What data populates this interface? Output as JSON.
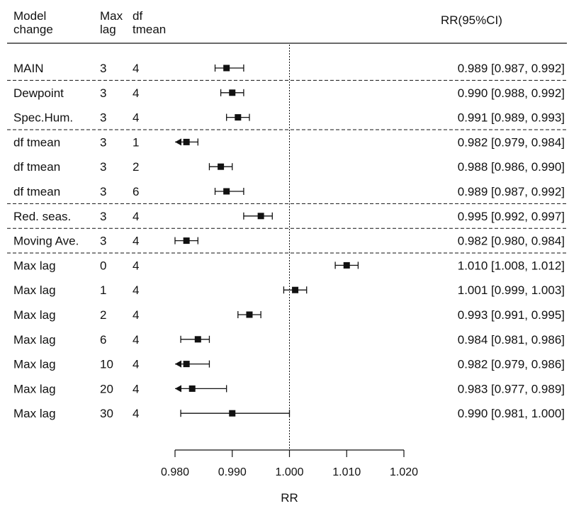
{
  "chart_data": {
    "type": "forest",
    "columns": {
      "model_line1": "Model",
      "model_line2": "change",
      "lag_line1": "Max",
      "lag_line2": "lag",
      "df_line1": "df",
      "df_line2": "tmean",
      "ci": "RR(95%CI)"
    },
    "xlabel": "RR",
    "xlim": [
      0.98,
      1.02
    ],
    "xticks": [
      "0.980",
      "0.990",
      "1.000",
      "1.010",
      "1.020"
    ],
    "xtick_values": [
      0.98,
      0.99,
      1.0,
      1.01,
      1.02
    ],
    "reference_line": 1.0,
    "rows": [
      {
        "model": "MAIN",
        "lag": "3",
        "df": "4",
        "rr": 0.989,
        "lo": 0.987,
        "hi": 0.992,
        "label": "0.989 [0.987, 0.992]",
        "bold": true
      },
      {
        "model": "Dewpoint",
        "lag": "3",
        "df": "4",
        "rr": 0.99,
        "lo": 0.988,
        "hi": 0.992,
        "label": "0.990 [0.988, 0.992]",
        "group_start": true
      },
      {
        "model": "Spec.Hum.",
        "lag": "3",
        "df": "4",
        "rr": 0.991,
        "lo": 0.989,
        "hi": 0.993,
        "label": "0.991 [0.989, 0.993]"
      },
      {
        "model": "df tmean",
        "lag": "3",
        "df": "1",
        "rr": 0.982,
        "lo": 0.979,
        "hi": 0.984,
        "label": "0.982 [0.979, 0.984]",
        "group_start": true
      },
      {
        "model": "df tmean",
        "lag": "3",
        "df": "2",
        "rr": 0.988,
        "lo": 0.986,
        "hi": 0.99,
        "label": "0.988 [0.986, 0.990]"
      },
      {
        "model": "df tmean",
        "lag": "3",
        "df": "6",
        "rr": 0.989,
        "lo": 0.987,
        "hi": 0.992,
        "label": "0.989 [0.987, 0.992]"
      },
      {
        "model": "Red. seas.",
        "lag": "3",
        "df": "4",
        "rr": 0.995,
        "lo": 0.992,
        "hi": 0.997,
        "label": "0.995 [0.992, 0.997]",
        "group_start": true
      },
      {
        "model": "Moving Ave.",
        "lag": "3",
        "df": "4",
        "rr": 0.982,
        "lo": 0.98,
        "hi": 0.984,
        "label": "0.982 [0.980, 0.984]",
        "group_start": true
      },
      {
        "model": "Max lag",
        "lag": "0",
        "df": "4",
        "rr": 1.01,
        "lo": 1.008,
        "hi": 1.012,
        "label": "1.010 [1.008, 1.012]",
        "group_start": true
      },
      {
        "model": "Max lag",
        "lag": "1",
        "df": "4",
        "rr": 1.001,
        "lo": 0.999,
        "hi": 1.003,
        "label": "1.001 [0.999, 1.003]"
      },
      {
        "model": "Max lag",
        "lag": "2",
        "df": "4",
        "rr": 0.993,
        "lo": 0.991,
        "hi": 0.995,
        "label": "0.993 [0.991, 0.995]"
      },
      {
        "model": "Max lag",
        "lag": "6",
        "df": "4",
        "rr": 0.984,
        "lo": 0.981,
        "hi": 0.986,
        "label": "0.984 [0.981, 0.986]"
      },
      {
        "model": "Max lag",
        "lag": "10",
        "df": "4",
        "rr": 0.982,
        "lo": 0.979,
        "hi": 0.986,
        "label": "0.982 [0.979, 0.986]"
      },
      {
        "model": "Max lag",
        "lag": "20",
        "df": "4",
        "rr": 0.983,
        "lo": 0.977,
        "hi": 0.989,
        "label": "0.983 [0.977, 0.989]"
      },
      {
        "model": "Max lag",
        "lag": "30",
        "df": "4",
        "rr": 0.99,
        "lo": 0.981,
        "hi": 1.0,
        "label": "0.990 [0.981, 1.000]"
      }
    ],
    "grid": false,
    "legend": "none"
  }
}
